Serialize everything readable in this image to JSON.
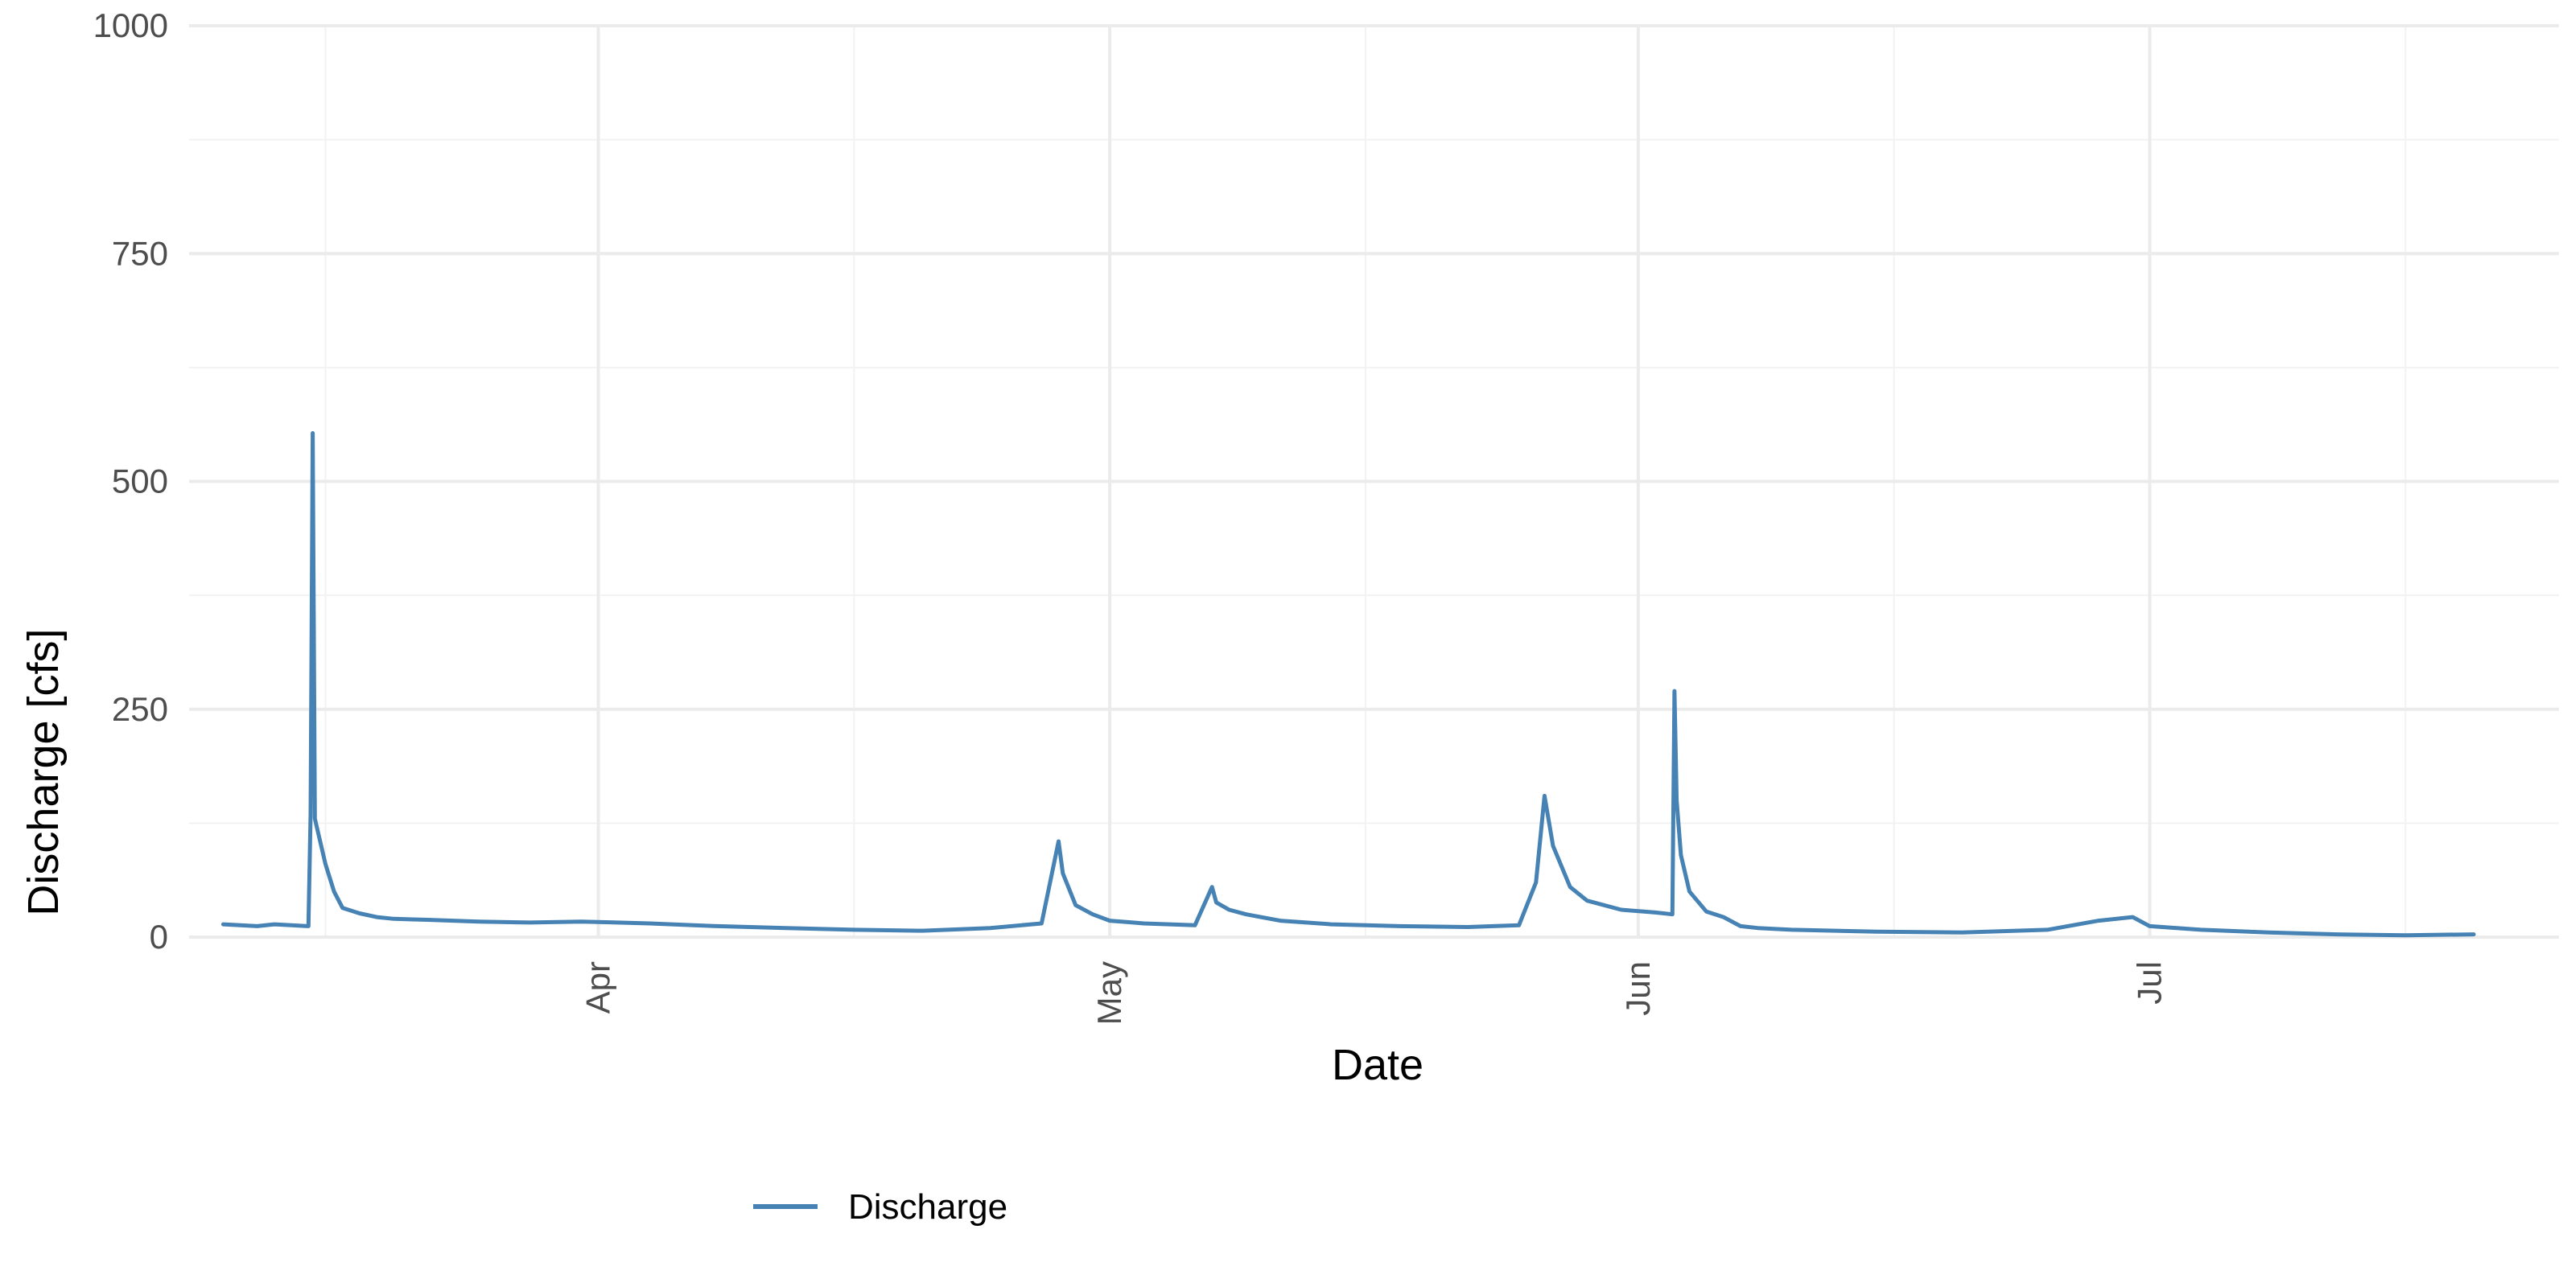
{
  "chart_data": {
    "type": "line",
    "title": "",
    "xlabel": "Date",
    "ylabel": "Discharge [cfs]",
    "ylim": [
      0,
      1000
    ],
    "xlim": [
      "2023-03-08",
      "2023-07-25"
    ],
    "y_ticks": [
      0,
      250,
      500,
      750,
      1000
    ],
    "x_ticks": [
      {
        "date": "2023-04-01",
        "label": "Apr"
      },
      {
        "date": "2023-05-01",
        "label": "May"
      },
      {
        "date": "2023-06-01",
        "label": "Jun"
      },
      {
        "date": "2023-07-01",
        "label": "Jul"
      }
    ],
    "grid": true,
    "legend_position": "bottom",
    "color": "#4682b4",
    "series": [
      {
        "name": "Discharge",
        "x": [
          "2023-03-10",
          "2023-03-11",
          "2023-03-12",
          "2023-03-13",
          "2023-03-14",
          "2023-03-15T00:00",
          "2023-03-15T03:00",
          "2023-03-15T06:00",
          "2023-03-15T09:00",
          "2023-03-15T12:00",
          "2023-03-16",
          "2023-03-16T12:00",
          "2023-03-17",
          "2023-03-18",
          "2023-03-19",
          "2023-03-20",
          "2023-03-22",
          "2023-03-25",
          "2023-03-28",
          "2023-03-31",
          "2023-04-04",
          "2023-04-08",
          "2023-04-12",
          "2023-04-16",
          "2023-04-20",
          "2023-04-24",
          "2023-04-27",
          "2023-04-28",
          "2023-04-28T06:00",
          "2023-04-29",
          "2023-04-30",
          "2023-05-01",
          "2023-05-03",
          "2023-05-06",
          "2023-05-07",
          "2023-05-07T06:00",
          "2023-05-08",
          "2023-05-09",
          "2023-05-11",
          "2023-05-14",
          "2023-05-18",
          "2023-05-22",
          "2023-05-25",
          "2023-05-26",
          "2023-05-26T12:00",
          "2023-05-27",
          "2023-05-28",
          "2023-05-29",
          "2023-05-31",
          "2023-06-02",
          "2023-06-03",
          "2023-06-03T03:00",
          "2023-06-03T06:00",
          "2023-06-03T12:00",
          "2023-06-04",
          "2023-06-05",
          "2023-06-06",
          "2023-06-07",
          "2023-06-08",
          "2023-06-10",
          "2023-06-15",
          "2023-06-20",
          "2023-06-25",
          "2023-06-28",
          "2023-06-30",
          "2023-07-01",
          "2023-07-04",
          "2023-07-08",
          "2023-07-12",
          "2023-07-16",
          "2023-07-20"
        ],
        "values": [
          14,
          13,
          12,
          14,
          13,
          12,
          135,
          553,
          130,
          120,
          80,
          50,
          32,
          26,
          22,
          20,
          19,
          17,
          16,
          17,
          15,
          12,
          10,
          8,
          7,
          10,
          15,
          105,
          70,
          35,
          25,
          18,
          15,
          13,
          55,
          38,
          30,
          25,
          18,
          14,
          12,
          11,
          13,
          60,
          155,
          100,
          55,
          40,
          30,
          27,
          25,
          270,
          150,
          90,
          50,
          28,
          22,
          12,
          10,
          8,
          6,
          5,
          8,
          18,
          22,
          12,
          8,
          5,
          3,
          2,
          3
        ]
      }
    ]
  }
}
